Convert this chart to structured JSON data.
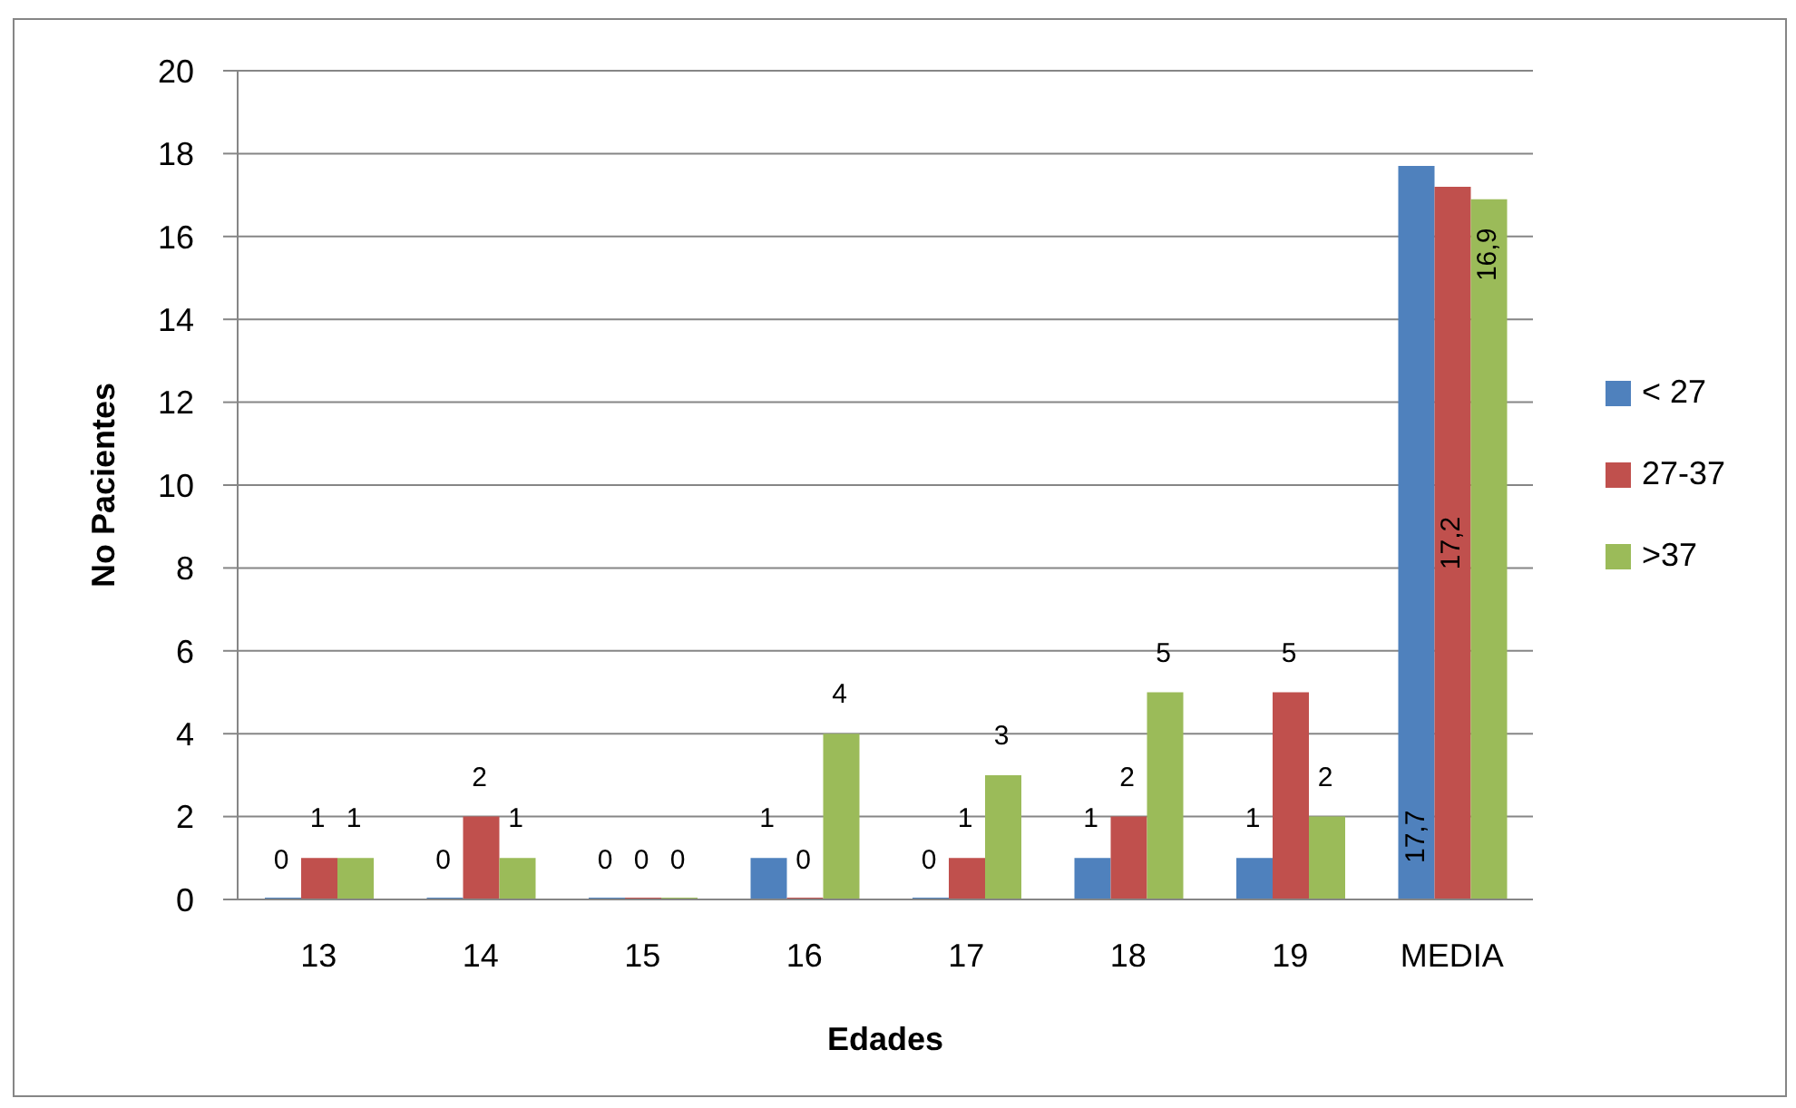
{
  "chart_data": {
    "type": "bar",
    "xlabel": "Edades",
    "ylabel": "No Pacientes",
    "categories": [
      "13",
      "14",
      "15",
      "16",
      "17",
      "18",
      "19",
      "MEDIA"
    ],
    "series": [
      {
        "name": "< 27",
        "color": "#4f81bd",
        "values": [
          0,
          0,
          0,
          1,
          0,
          1,
          1,
          17.7
        ],
        "value_labels": [
          "0",
          "0",
          "0",
          "1",
          "0",
          "1",
          "1",
          "17,7"
        ]
      },
      {
        "name": "27-37",
        "color": "#c0504d",
        "values": [
          1,
          2,
          0,
          0,
          1,
          2,
          5,
          17.2
        ],
        "value_labels": [
          "1",
          "2",
          "0",
          "0",
          "1",
          "2",
          "5",
          "17,2"
        ]
      },
      {
        "name": ">37",
        "color": "#9bbb59",
        "values": [
          1,
          1,
          0,
          4,
          3,
          5,
          2,
          16.9
        ],
        "value_labels": [
          "1",
          "1",
          "0",
          "4",
          "3",
          "5",
          "2",
          "16,9"
        ]
      }
    ],
    "ylim": [
      0,
      20
    ],
    "yticks": [
      0,
      2,
      4,
      6,
      8,
      10,
      12,
      14,
      16,
      18,
      20
    ],
    "grid": "y",
    "legend": "right"
  }
}
